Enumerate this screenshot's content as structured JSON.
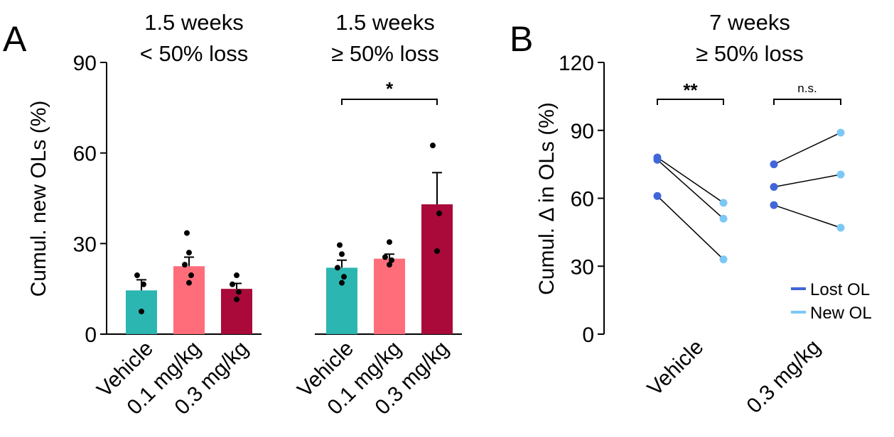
{
  "colors": {
    "vehicle": "#2CB6B2",
    "dose_01": "#FF6D7A",
    "dose_03": "#A90A3A",
    "lost": "#4066D9",
    "new": "#7CC8F5",
    "ink": "#000000"
  },
  "panels": {
    "a_letter": "A",
    "b_letter": "B"
  },
  "chart_data": [
    {
      "type": "bar",
      "panel": "A",
      "title": [
        "1.5 weeks",
        "< 50% loss"
      ],
      "ylabel": "Cumul. new OLs (%)",
      "ylim": [
        0,
        90
      ],
      "yticks": [
        "0",
        "30",
        "60",
        "90"
      ],
      "categories": [
        "Vehicle",
        "0.1 mg/kg",
        "0.3 mg/kg"
      ],
      "values": [
        14.5,
        22.5,
        15
      ],
      "sem": [
        3.5,
        3,
        1.8
      ],
      "points": [
        [
          7.5,
          16.5,
          19.5
        ],
        [
          17,
          19.5,
          23,
          27,
          33.5
        ],
        [
          11.5,
          14,
          16.5,
          19.5
        ]
      ],
      "significance": []
    },
    {
      "type": "bar",
      "panel": "A",
      "title": [
        "1.5 weeks",
        "≥ 50% loss"
      ],
      "ylabel": "",
      "ylim": [
        0,
        90
      ],
      "categories": [
        "Vehicle",
        "0.1 mg/kg",
        "0.3 mg/kg"
      ],
      "values": [
        22,
        25,
        43
      ],
      "sem": [
        2.5,
        1.5,
        10.5
      ],
      "points": [
        [
          17,
          19,
          22,
          26.5,
          29.5
        ],
        [
          23,
          24.5,
          25.5,
          30.5
        ],
        [
          27.5,
          40,
          62.5
        ]
      ],
      "significance": [
        {
          "from": 0,
          "to": 2,
          "label": "*"
        }
      ]
    },
    {
      "type": "line",
      "panel": "B",
      "title": [
        "7 weeks",
        "≥ 50% loss"
      ],
      "ylabel": "Cumul. Δ in OLs (%)",
      "ylim": [
        0,
        120
      ],
      "yticks": [
        "0",
        "30",
        "60",
        "90",
        "120"
      ],
      "categories": [
        "Vehicle",
        "0.3 mg/kg"
      ],
      "legend": {
        "position": "bottom-right",
        "entries": [
          {
            "name": "Lost OL",
            "color": "#4066D9"
          },
          {
            "name": "New OL",
            "color": "#7CC8F5"
          }
        ]
      },
      "pairs": [
        [
          {
            "lost": 78,
            "new": 58
          },
          {
            "lost": 77,
            "new": 51
          },
          {
            "lost": 61,
            "new": 33
          }
        ],
        [
          {
            "lost": 75,
            "new": 89
          },
          {
            "lost": 65,
            "new": 70.5
          },
          {
            "lost": 57,
            "new": 47
          }
        ]
      ],
      "significance": [
        {
          "group": 0,
          "label": "**"
        },
        {
          "group": 1,
          "label": "n.s."
        }
      ]
    }
  ]
}
